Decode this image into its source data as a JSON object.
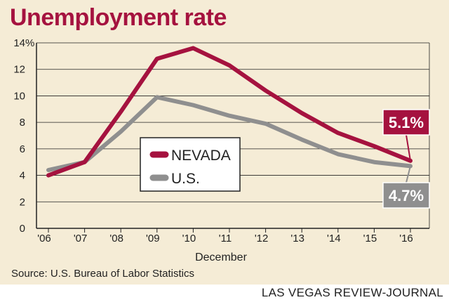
{
  "title": "Unemployment rate",
  "source": "Source: U.S. Bureau of Labor Statistics",
  "credit": "LAS VEGAS REVIEW-JOURNAL",
  "chart_data": {
    "type": "line",
    "title": "Unemployment rate",
    "xlabel": "December",
    "ylabel": "",
    "categories": [
      "'06",
      "'07",
      "'08",
      "'09",
      "'10",
      "'11",
      "'12",
      "'13",
      "'14",
      "'15",
      "'16"
    ],
    "ylim": [
      0,
      14
    ],
    "yticks": [
      "0",
      "2",
      "4",
      "6",
      "8",
      "10",
      "12",
      "14"
    ],
    "y_unit": "%",
    "grid": true,
    "legend_position": "center-left",
    "series": [
      {
        "name": "NEVADA",
        "color": "#a5123f",
        "values": [
          4.0,
          5.0,
          8.8,
          12.8,
          13.6,
          12.3,
          10.4,
          8.7,
          7.2,
          6.2,
          5.1
        ],
        "end_label": "5.1%"
      },
      {
        "name": "U.S.",
        "color": "#8f8f8f",
        "values": [
          4.4,
          5.0,
          7.3,
          9.9,
          9.3,
          8.5,
          7.9,
          6.7,
          5.6,
          5.0,
          4.7
        ],
        "end_label": "4.7%"
      }
    ]
  }
}
